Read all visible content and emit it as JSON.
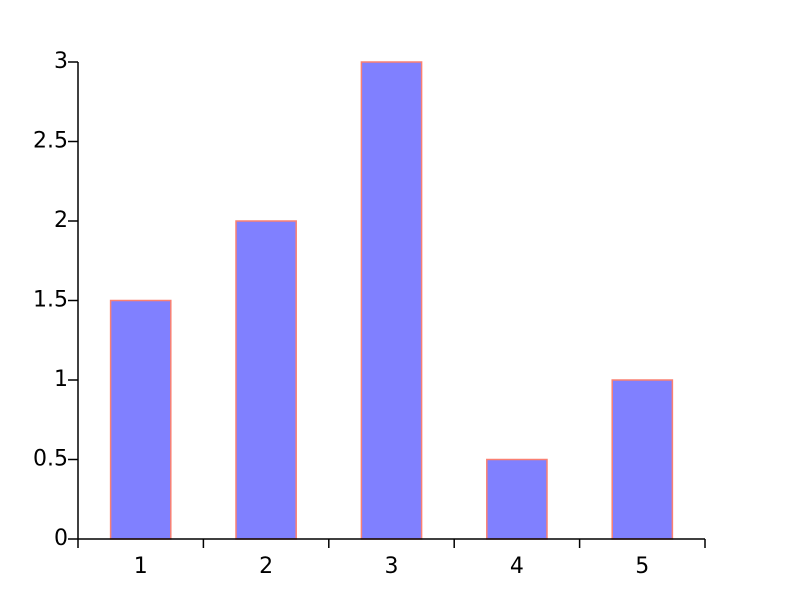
{
  "chart_data": {
    "type": "bar",
    "categories": [
      "1",
      "2",
      "3",
      "4",
      "5"
    ],
    "values": [
      1.5,
      2,
      3,
      0.5,
      1
    ],
    "ylim": [
      0,
      3
    ],
    "yticks": [
      0,
      0.5,
      1,
      1.5,
      2,
      2.5,
      3
    ],
    "ytick_labels": [
      "0",
      "0.5",
      "1",
      "1.5",
      "2",
      "2.5",
      "3"
    ],
    "grid": false,
    "colors": {
      "bar_fill": "#8080ff",
      "bar_edge": "#fa8072"
    }
  }
}
